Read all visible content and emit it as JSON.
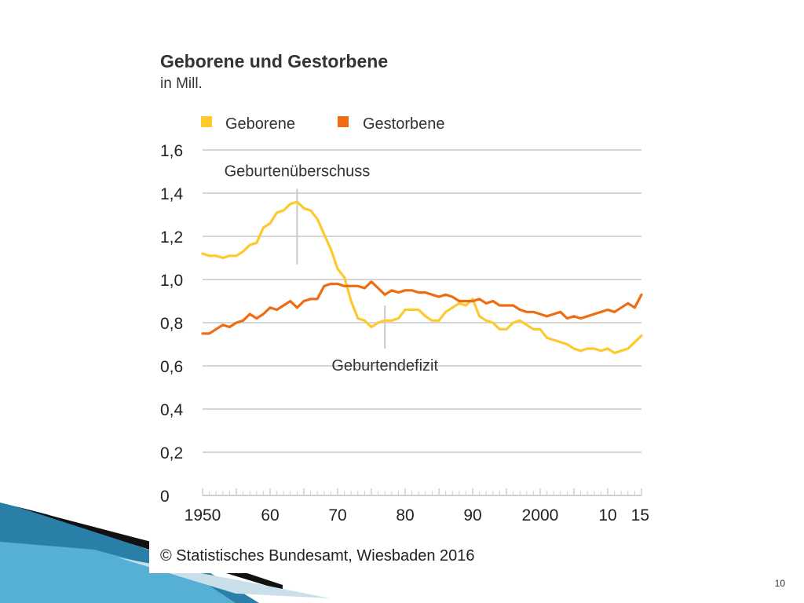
{
  "slide": {
    "page_number": "10"
  },
  "colors": {
    "geborene": "#fcc92e",
    "gestorbene": "#ee6c13",
    "grid": "#d6d6d6",
    "text": "#333333"
  },
  "chart_data": {
    "type": "line",
    "title": "Geborene und Gestorbene",
    "subtitle": "in Mill.",
    "legend": {
      "placement": "top-left"
    },
    "grid": true,
    "xlabel": "",
    "ylabel": "",
    "xlim": [
      1950,
      2015
    ],
    "ylim": [
      0,
      1.6
    ],
    "x_ticks": [
      1950,
      1960,
      1970,
      1980,
      1990,
      2000,
      2010,
      2015
    ],
    "x_tick_labels": [
      "1950",
      "60",
      "70",
      "80",
      "90",
      "2000",
      "10",
      "15"
    ],
    "y_ticks": [
      0,
      0.2,
      0.4,
      0.6,
      0.8,
      1.0,
      1.2,
      1.4,
      1.6
    ],
    "y_tick_labels": [
      "0",
      "0,2",
      "0,4",
      "0,6",
      "0,8",
      "1,0",
      "1,2",
      "1,4",
      "1,6"
    ],
    "x": [
      1950,
      1951,
      1952,
      1953,
      1954,
      1955,
      1956,
      1957,
      1958,
      1959,
      1960,
      1961,
      1962,
      1963,
      1964,
      1965,
      1966,
      1967,
      1968,
      1969,
      1970,
      1971,
      1972,
      1973,
      1974,
      1975,
      1976,
      1977,
      1978,
      1979,
      1980,
      1981,
      1982,
      1983,
      1984,
      1985,
      1986,
      1987,
      1988,
      1989,
      1990,
      1991,
      1992,
      1993,
      1994,
      1995,
      1996,
      1997,
      1998,
      1999,
      2000,
      2001,
      2002,
      2003,
      2004,
      2005,
      2006,
      2007,
      2008,
      2009,
      2010,
      2011,
      2012,
      2013,
      2014,
      2015
    ],
    "series": [
      {
        "name": "Geborene",
        "values": [
          1.12,
          1.11,
          1.11,
          1.1,
          1.11,
          1.11,
          1.13,
          1.16,
          1.17,
          1.24,
          1.26,
          1.31,
          1.32,
          1.35,
          1.36,
          1.33,
          1.32,
          1.28,
          1.21,
          1.14,
          1.05,
          1.01,
          0.9,
          0.82,
          0.81,
          0.78,
          0.8,
          0.81,
          0.81,
          0.82,
          0.86,
          0.86,
          0.86,
          0.83,
          0.81,
          0.81,
          0.85,
          0.87,
          0.89,
          0.88,
          0.91,
          0.83,
          0.81,
          0.8,
          0.77,
          0.77,
          0.8,
          0.81,
          0.79,
          0.77,
          0.77,
          0.73,
          0.72,
          0.71,
          0.7,
          0.68,
          0.67,
          0.68,
          0.68,
          0.67,
          0.68,
          0.66,
          0.67,
          0.68,
          0.71,
          0.74
        ]
      },
      {
        "name": "Gestorbene",
        "values": [
          0.75,
          0.75,
          0.77,
          0.79,
          0.78,
          0.8,
          0.81,
          0.84,
          0.82,
          0.84,
          0.87,
          0.86,
          0.88,
          0.9,
          0.87,
          0.9,
          0.91,
          0.91,
          0.97,
          0.98,
          0.98,
          0.97,
          0.97,
          0.97,
          0.96,
          0.99,
          0.96,
          0.93,
          0.95,
          0.94,
          0.95,
          0.95,
          0.94,
          0.94,
          0.93,
          0.92,
          0.93,
          0.92,
          0.9,
          0.9,
          0.9,
          0.91,
          0.89,
          0.9,
          0.88,
          0.88,
          0.88,
          0.86,
          0.85,
          0.85,
          0.84,
          0.83,
          0.84,
          0.85,
          0.82,
          0.83,
          0.82,
          0.83,
          0.84,
          0.85,
          0.86,
          0.85,
          0.87,
          0.89,
          0.87,
          0.93
        ]
      }
    ],
    "annotations": [
      {
        "text": "Geburtenüberschuss",
        "x": 1964,
        "y_from": 1.07,
        "y_to": 1.42,
        "label_position": "above"
      },
      {
        "text": "Geburtendefizit",
        "x": 1977,
        "y_from": 0.68,
        "y_to": 0.88,
        "label_position": "below"
      }
    ],
    "source": "© Statistisches Bundesamt, Wiesbaden 2016"
  }
}
